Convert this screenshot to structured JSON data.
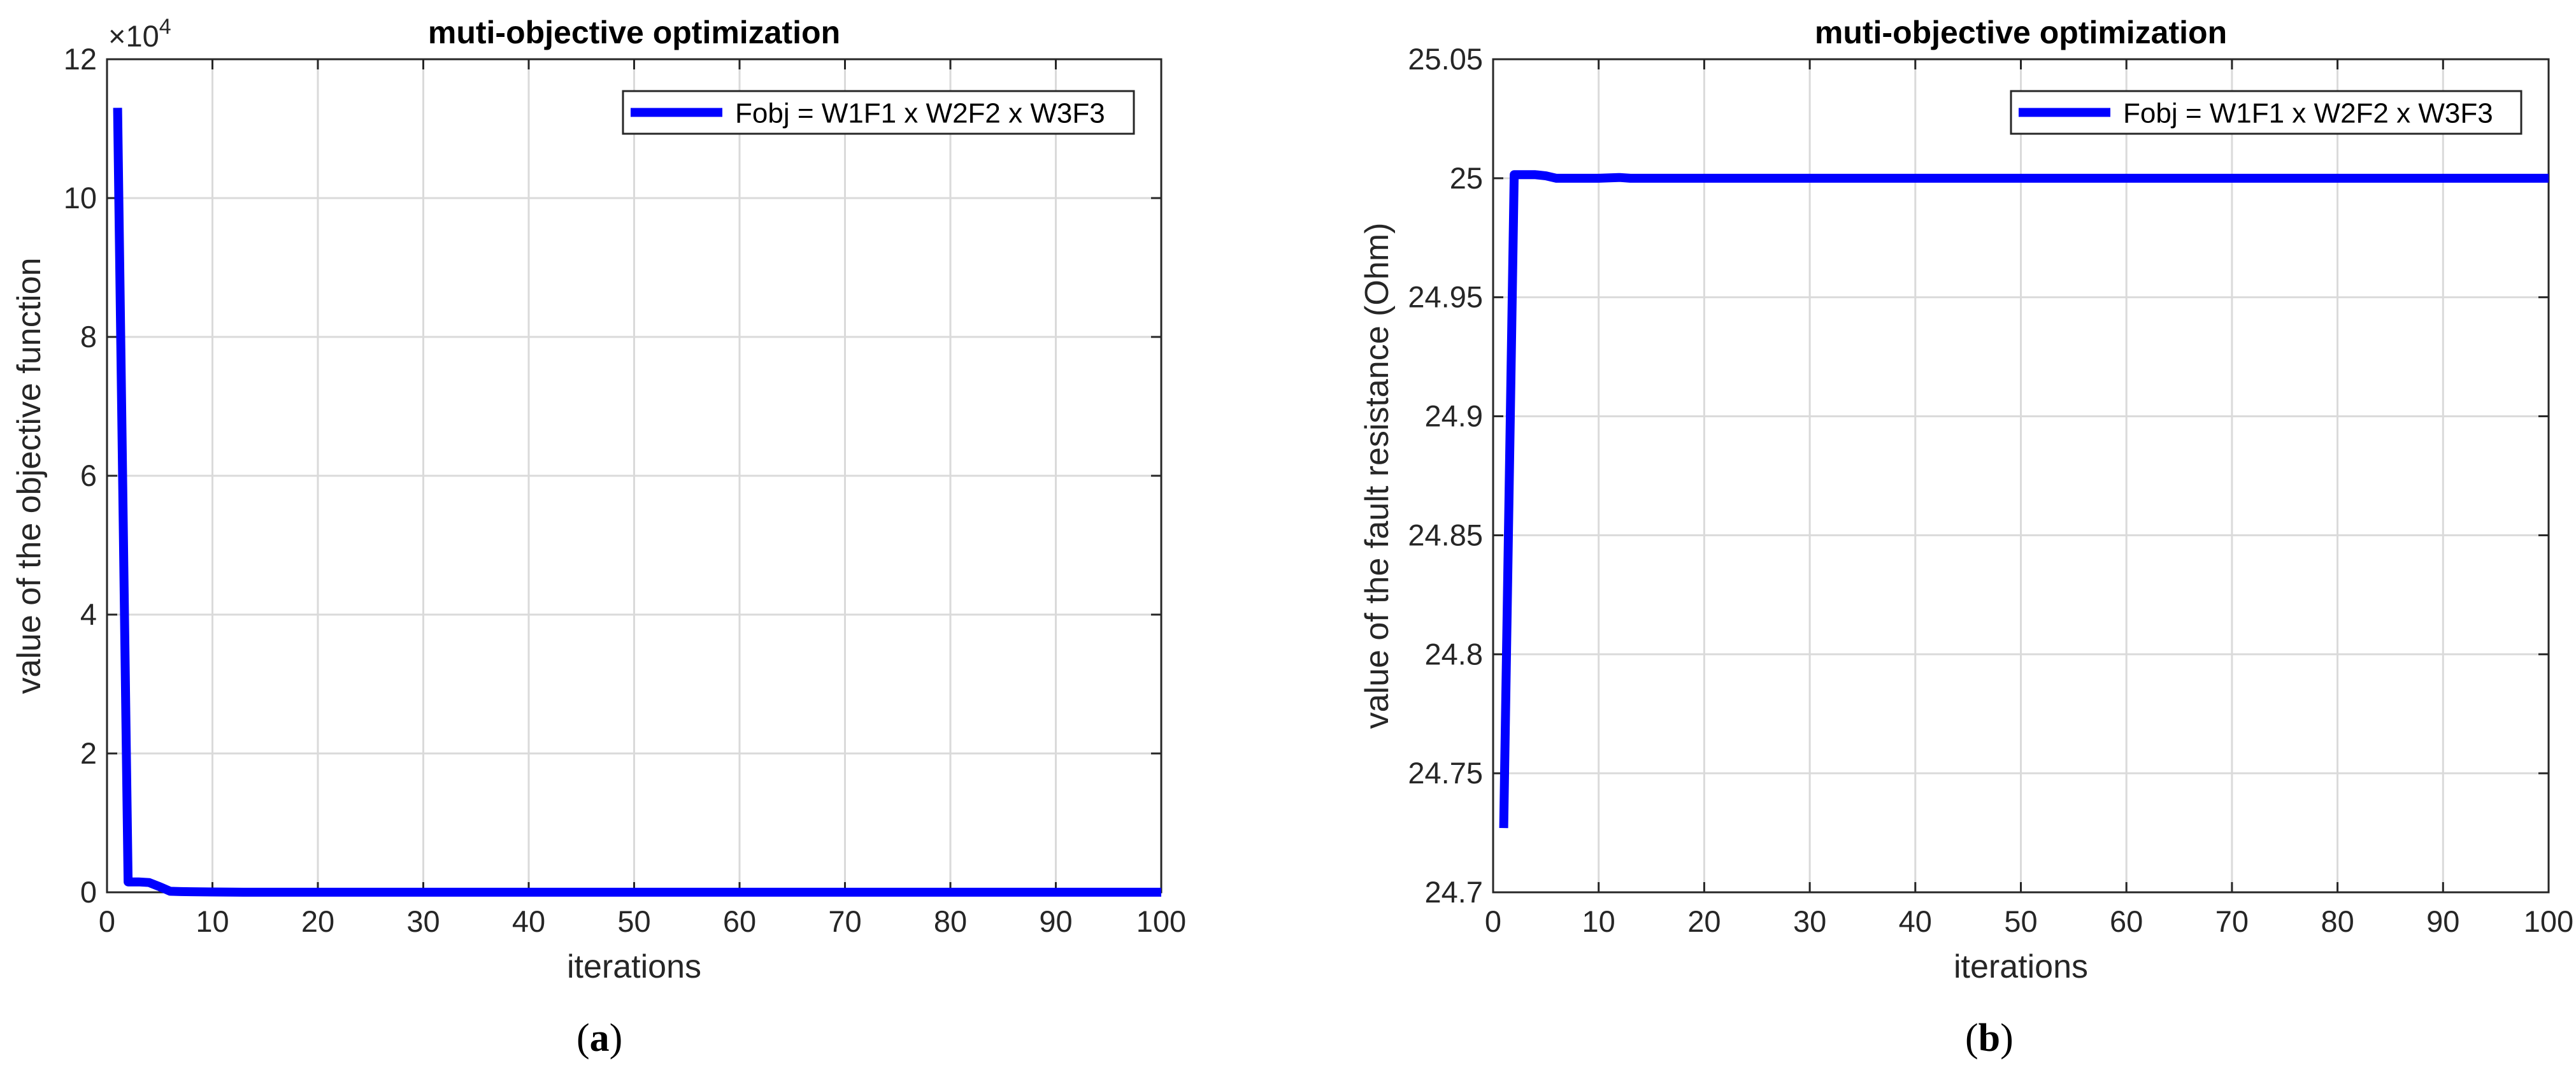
{
  "chart_data": [
    {
      "panel": "(a)",
      "panel_letter": "a",
      "type": "line",
      "title": "muti-objective optimization",
      "xlabel": "iterations",
      "ylabel": "value of the objective function",
      "y_exponent_label": "×10",
      "y_exponent_power": "4",
      "xlim": [
        0,
        100
      ],
      "ylim": [
        0,
        120000
      ],
      "xticks": [
        0,
        10,
        20,
        30,
        40,
        50,
        60,
        70,
        80,
        90,
        100
      ],
      "xtick_labels": [
        "0",
        "10",
        "20",
        "30",
        "40",
        "50",
        "60",
        "70",
        "80",
        "90",
        "100"
      ],
      "yticks": [
        0,
        20000,
        40000,
        60000,
        80000,
        100000,
        120000
      ],
      "ytick_labels": [
        "0",
        "2",
        "4",
        "6",
        "8",
        "10",
        "12"
      ],
      "grid": true,
      "legend_position": "top-right",
      "series": [
        {
          "name": "Fobj = W1F1 x W2F2 x W3F3",
          "color": "#0000ff",
          "x": [
            1,
            2,
            3,
            4,
            5,
            6,
            7,
            8,
            10,
            12,
            13,
            100
          ],
          "y": [
            113000,
            1500,
            1500,
            1400,
            800,
            150,
            100,
            80,
            50,
            30,
            10,
            10
          ]
        }
      ]
    },
    {
      "panel": "(b)",
      "panel_letter": "b",
      "type": "line",
      "title": "muti-objective optimization",
      "xlabel": "iterations",
      "ylabel": "value of the fault resistance (Ohm)",
      "xlim": [
        0,
        100
      ],
      "ylim": [
        24.7,
        25.05
      ],
      "xticks": [
        0,
        10,
        20,
        30,
        40,
        50,
        60,
        70,
        80,
        90,
        100
      ],
      "xtick_labels": [
        "0",
        "10",
        "20",
        "30",
        "40",
        "50",
        "60",
        "70",
        "80",
        "90",
        "100"
      ],
      "yticks": [
        24.7,
        24.75,
        24.8,
        24.85,
        24.9,
        24.95,
        25,
        25.05
      ],
      "ytick_labels": [
        "24.7",
        "24.75",
        "24.8",
        "24.85",
        "24.9",
        "24.95",
        "25",
        "25.05"
      ],
      "grid": true,
      "legend_position": "top-right",
      "series": [
        {
          "name": "Fobj = W1F1 x W2F2 x W3F3",
          "color": "#0000ff",
          "x": [
            1,
            2,
            3,
            4,
            5,
            6,
            7,
            10,
            12,
            13,
            100
          ],
          "y": [
            24.727,
            25.0015,
            25.0015,
            25.0015,
            25.001,
            25.0,
            25.0,
            25.0,
            25.0003,
            25.0,
            25.0
          ]
        }
      ]
    }
  ]
}
